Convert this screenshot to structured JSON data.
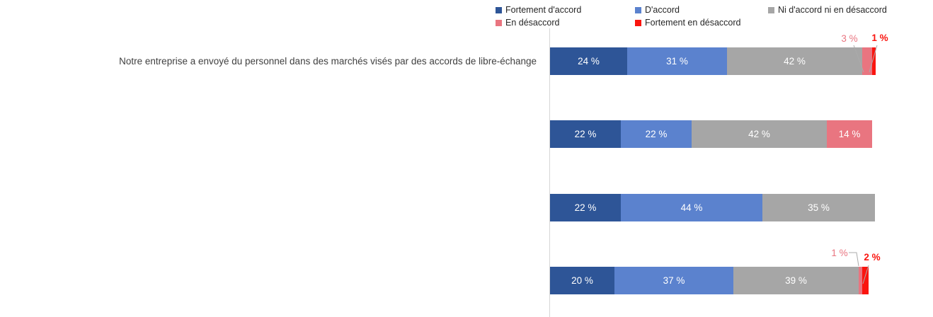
{
  "legend": {
    "items": [
      {
        "label": "Fortement d'accord",
        "color": "#2E5597"
      },
      {
        "label": "D'accord",
        "color": "#5B82CE"
      },
      {
        "label": "Ni d'accord ni en désaccord",
        "color": "#A6A6A6"
      },
      {
        "label": "En désaccord",
        "color": "#E97580"
      },
      {
        "label": "Fortement en désaccord",
        "color": "#FA150F"
      }
    ]
  },
  "chart_data": {
    "type": "bar",
    "orientation": "horizontal",
    "stacked": true,
    "unit": "%",
    "xlim": [
      0,
      100
    ],
    "grid": false,
    "legend_position": "top",
    "value_label_format": "{v} %",
    "categories": [
      "Notre entreprise a envoyé du personnel dans des marchés visés par des accords de libre-échange",
      "",
      "",
      ""
    ],
    "series": [
      {
        "name": "Fortement d'accord",
        "color": "#2E5597",
        "values": [
          24,
          22,
          22,
          20
        ]
      },
      {
        "name": "D'accord",
        "color": "#5B82CE",
        "values": [
          31,
          22,
          44,
          37
        ]
      },
      {
        "name": "Ni d'accord ni en désaccord",
        "color": "#A6A6A6",
        "values": [
          42,
          42,
          35,
          39
        ]
      },
      {
        "name": "En désaccord",
        "color": "#E97580",
        "values": [
          3,
          14,
          0,
          1
        ]
      },
      {
        "name": "Fortement en désaccord",
        "color": "#FA150F",
        "values": [
          1,
          0,
          0,
          2
        ]
      }
    ]
  },
  "callouts": [
    {
      "text": "3 %",
      "row": 0,
      "series": "En désaccord",
      "color": "#E97580",
      "bold": false
    },
    {
      "text": "1 %",
      "row": 0,
      "series": "Fortement en désaccord",
      "color": "#FA150F",
      "bold": true
    },
    {
      "text": "1 %",
      "row": 3,
      "series": "En désaccord",
      "color": "#E97580",
      "bold": false
    },
    {
      "text": "2 %",
      "row": 3,
      "series": "Fortement en désaccord",
      "color": "#FA150F",
      "bold": true
    }
  ]
}
